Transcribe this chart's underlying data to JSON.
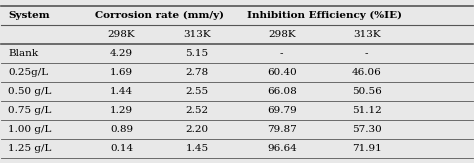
{
  "col_headers_row1": [
    "System",
    "Corrosion rate (mm/y)",
    "",
    "Inhibition Efficiency (%IE)",
    ""
  ],
  "col_headers_row2": [
    "",
    "298K",
    "313K",
    "298K",
    "313K"
  ],
  "rows": [
    [
      "Blank",
      "4.29",
      "5.15",
      "-",
      "-"
    ],
    [
      "0.25g/L",
      "1.69",
      "2.78",
      "60.40",
      "46.06"
    ],
    [
      "0.50 g/L",
      "1.44",
      "2.55",
      "66.08",
      "50.56"
    ],
    [
      "0.75 g/L",
      "1.29",
      "2.52",
      "69.79",
      "51.12"
    ],
    [
      "1.00 g/L",
      "0.89",
      "2.20",
      "79.87",
      "57.30"
    ],
    [
      "1.25 g/L",
      "0.14",
      "1.45",
      "96.64",
      "71.91"
    ]
  ],
  "bg_color": "#e8e8e8",
  "text_color": "#000000",
  "header_fontsize": 7.5,
  "cell_fontsize": 7.5,
  "line_color": "#555555"
}
